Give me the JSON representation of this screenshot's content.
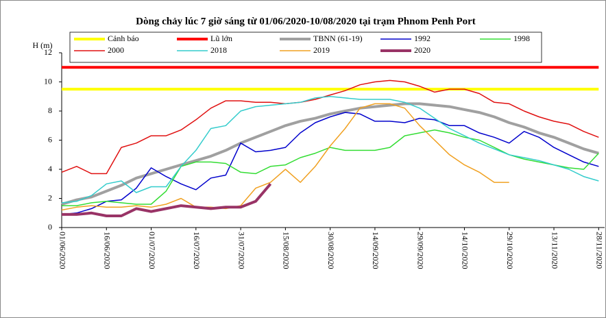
{
  "chart_data": {
    "type": "line",
    "title": "Dòng chảy lúc 7 giờ sáng từ 01/06/2020-10/08/2020 tại trạm Phnom Penh Port",
    "y_label": "H (m)",
    "x": [
      "01/06/2020",
      "06/06/2020",
      "11/06/2020",
      "16/06/2020",
      "21/06/2020",
      "26/06/2020",
      "01/07/2020",
      "06/07/2020",
      "11/07/2020",
      "16/07/2020",
      "21/07/2020",
      "26/07/2020",
      "31/07/2020",
      "05/08/2020",
      "10/08/2020",
      "15/08/2020",
      "20/08/2020",
      "25/08/2020",
      "30/08/2020",
      "04/09/2020",
      "09/09/2020",
      "14/09/2020",
      "19/09/2020",
      "24/09/2020",
      "29/09/2020",
      "04/10/2020",
      "09/10/2020",
      "14/10/2020",
      "19/10/2020",
      "24/10/2020",
      "29/10/2020",
      "03/11/2020",
      "08/11/2020",
      "13/11/2020",
      "18/11/2020",
      "23/11/2020",
      "28/11/2020"
    ],
    "xlim": [
      "01/06/2020",
      "30/11/2020"
    ],
    "xticks": [
      "01/06/2020",
      "16/06/2020",
      "01/07/2020",
      "16/07/2020",
      "31/07/2020",
      "15/08/2020",
      "30/08/2020",
      "14/09/2020",
      "29/09/2020",
      "14/10/2020",
      "29/10/2020",
      "13/11/2020",
      "28/11/2020"
    ],
    "ylim": [
      0,
      12
    ],
    "yticks": [
      0,
      2,
      4,
      6,
      8,
      10,
      12
    ],
    "grid": false,
    "legend": "top",
    "series": [
      {
        "name": "Cảnh báo",
        "color": "#ffff00",
        "width": 4,
        "values": [
          9.5,
          9.5,
          9.5,
          9.5,
          9.5,
          9.5,
          9.5,
          9.5,
          9.5,
          9.5,
          9.5,
          9.5,
          9.5,
          9.5,
          9.5,
          9.5,
          9.5,
          9.5,
          9.5,
          9.5,
          9.5,
          9.5,
          9.5,
          9.5,
          9.5,
          9.5,
          9.5,
          9.5,
          9.5,
          9.5,
          9.5,
          9.5,
          9.5,
          9.5,
          9.5,
          9.5,
          9.5
        ]
      },
      {
        "name": "Lũ lớn",
        "color": "#ff0000",
        "width": 4,
        "values": [
          11,
          11,
          11,
          11,
          11,
          11,
          11,
          11,
          11,
          11,
          11,
          11,
          11,
          11,
          11,
          11,
          11,
          11,
          11,
          11,
          11,
          11,
          11,
          11,
          11,
          11,
          11,
          11,
          11,
          11,
          11,
          11,
          11,
          11,
          11,
          11,
          11
        ]
      },
      {
        "name": "TBNN (61-19)",
        "color": "#a0a0a0",
        "width": 4,
        "values": [
          1.6,
          1.9,
          2.1,
          2.5,
          2.9,
          3.4,
          3.7,
          4.0,
          4.3,
          4.6,
          4.9,
          5.3,
          5.8,
          6.2,
          6.6,
          7.0,
          7.3,
          7.5,
          7.8,
          8.0,
          8.2,
          8.3,
          8.4,
          8.5,
          8.5,
          8.4,
          8.3,
          8.1,
          7.9,
          7.6,
          7.2,
          6.9,
          6.5,
          6.2,
          5.8,
          5.4,
          5.1
        ]
      },
      {
        "name": "1992",
        "color": "#0000cc",
        "width": 1.5,
        "values": [
          0.9,
          1.0,
          1.3,
          1.8,
          1.9,
          2.7,
          4.1,
          3.5,
          3.0,
          2.6,
          3.4,
          3.6,
          5.8,
          5.2,
          5.3,
          5.5,
          6.5,
          7.2,
          7.6,
          7.9,
          7.8,
          7.3,
          7.3,
          7.2,
          7.5,
          7.4,
          7.0,
          7.0,
          6.5,
          6.2,
          5.8,
          6.6,
          6.2,
          5.5,
          5.0,
          4.5,
          4.2
        ]
      },
      {
        "name": "1998",
        "color": "#33dd33",
        "width": 1.5,
        "values": [
          1.5,
          1.5,
          1.7,
          1.8,
          1.7,
          1.6,
          1.6,
          2.5,
          4.2,
          4.5,
          4.5,
          4.4,
          3.8,
          3.7,
          4.2,
          4.3,
          4.8,
          5.1,
          5.5,
          5.3,
          5.3,
          5.3,
          5.5,
          6.3,
          6.5,
          6.7,
          6.5,
          6.2,
          6.0,
          5.5,
          5.0,
          4.7,
          4.5,
          4.3,
          4.1,
          4.0,
          5.1
        ]
      },
      {
        "name": "2000",
        "color": "#e01010",
        "width": 1.5,
        "values": [
          3.8,
          4.2,
          3.7,
          3.7,
          5.5,
          5.8,
          6.3,
          6.3,
          6.7,
          7.4,
          8.2,
          8.7,
          8.7,
          8.6,
          8.6,
          8.5,
          8.6,
          8.8,
          9.1,
          9.4,
          9.8,
          10.0,
          10.1,
          10.0,
          9.7,
          9.3,
          9.5,
          9.5,
          9.2,
          8.6,
          8.5,
          8.0,
          7.6,
          7.3,
          7.1,
          6.6,
          6.2
        ]
      },
      {
        "name": "2018",
        "color": "#33cccc",
        "width": 1.5,
        "values": [
          1.7,
          1.8,
          2.2,
          3.0,
          3.2,
          2.4,
          2.8,
          2.8,
          4.2,
          5.3,
          6.8,
          7.0,
          8.0,
          8.3,
          8.4,
          8.5,
          8.6,
          8.9,
          9.0,
          8.9,
          8.8,
          8.8,
          8.8,
          8.6,
          8.2,
          7.5,
          6.8,
          6.3,
          5.8,
          5.4,
          5.0,
          4.8,
          4.6,
          4.3,
          4.0,
          3.5,
          3.2
        ]
      },
      {
        "name": "2019",
        "color": "#f0a020",
        "width": 1.5,
        "values": [
          1.2,
          1.4,
          1.5,
          1.4,
          1.4,
          1.5,
          1.4,
          1.6,
          2.0,
          1.4,
          1.4,
          1.3,
          1.5,
          2.7,
          3.1,
          4.0,
          3.1,
          4.2,
          5.6,
          6.8,
          8.2,
          8.5,
          8.5,
          8.2,
          7.0,
          6.0,
          5.0,
          4.3,
          3.8,
          3.1,
          3.1,
          null,
          null,
          null,
          null,
          null,
          null
        ]
      },
      {
        "name": "2020",
        "color": "#993366",
        "width": 4,
        "values": [
          0.9,
          0.9,
          1.0,
          0.8,
          0.8,
          1.3,
          1.1,
          1.3,
          1.5,
          1.4,
          1.3,
          1.4,
          1.4,
          1.8,
          3.0,
          null,
          null,
          null,
          null,
          null,
          null,
          null,
          null,
          null,
          null,
          null,
          null,
          null,
          null,
          null,
          null,
          null,
          null,
          null,
          null,
          null,
          null
        ]
      }
    ]
  }
}
